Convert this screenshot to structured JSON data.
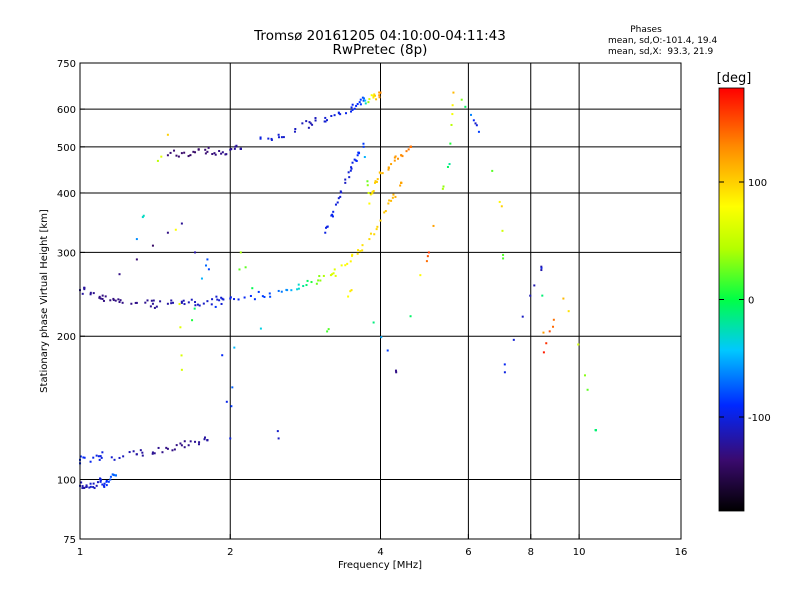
{
  "chart_data": {
    "type": "scatter",
    "title_line1": "Tromsø 20161205 04:10:00-04:11:43",
    "title_line2": "RwPretec (8p)",
    "xlabel": "Frequency [MHz]",
    "ylabel": "Stationary phase Virtual Height [km]",
    "x_scale": "log",
    "y_scale": "log",
    "xlim": [
      1,
      16
    ],
    "ylim": [
      75,
      750
    ],
    "x_ticks": [
      1,
      2,
      4,
      6,
      8,
      10,
      16
    ],
    "x_tick_labels": [
      "1",
      "2",
      "4",
      "6",
      "8",
      "10",
      "16"
    ],
    "x_grid": [
      2,
      4,
      6,
      8,
      10
    ],
    "y_ticks": [
      75,
      100,
      200,
      300,
      400,
      500,
      600,
      750
    ],
    "y_tick_labels": [
      "75",
      "100",
      "200",
      "300",
      "400",
      "500",
      "600",
      "750"
    ],
    "y_grid": [
      100,
      200,
      300,
      400,
      500,
      600
    ],
    "grid": true,
    "stats": {
      "heading": "Phases",
      "line_o": "mean, sd,O:-101.4, 19.4",
      "line_x": "mean, sd,X:  93.3, 21.9"
    },
    "colorbar": {
      "label": "[deg]",
      "range": [
        -180,
        180
      ],
      "ticks": [
        100,
        0,
        -100
      ],
      "tick_labels": [
        "100",
        "0",
        "-100"
      ]
    },
    "traces": [
      {
        "x": [
          1.0,
          1.02,
          1.05,
          1.08,
          1.1,
          1.12,
          1.15,
          1.18
        ],
        "y": [
          97,
          96,
          98,
          97,
          99,
          98,
          100,
          102
        ],
        "phase": [
          -110,
          -120,
          -105,
          -115,
          -100,
          -95,
          -80,
          -70
        ]
      },
      {
        "x": [
          1.0,
          1.05,
          1.1,
          1.2,
          1.3,
          1.4,
          1.5,
          1.6,
          1.7,
          1.8
        ],
        "y": [
          110,
          109,
          112,
          111,
          113,
          114,
          116,
          118,
          120,
          121
        ],
        "phase": [
          -90,
          -95,
          -100,
          -110,
          -120,
          -125,
          -130,
          -130,
          -125,
          -120
        ]
      },
      {
        "x": [
          1.0,
          1.05,
          1.1,
          1.15,
          1.2,
          1.3,
          1.4,
          1.5,
          1.6,
          1.7,
          1.8,
          1.9,
          2.0,
          2.2,
          2.4,
          2.6,
          2.8,
          3.0,
          3.2,
          3.4,
          3.6,
          3.8,
          4.0,
          4.2,
          4.4
        ],
        "y": [
          250,
          245,
          240,
          238,
          236,
          235,
          234,
          234,
          235,
          236,
          237,
          238,
          240,
          243,
          246,
          250,
          255,
          262,
          270,
          282,
          298,
          320,
          350,
          385,
          420
        ],
        "phase": [
          -120,
          -125,
          -130,
          -132,
          -130,
          -128,
          -125,
          -120,
          -115,
          -110,
          -108,
          -105,
          -100,
          -90,
          -80,
          -60,
          -20,
          30,
          60,
          80,
          90,
          95,
          100,
          110,
          120
        ]
      },
      {
        "x": [
          1.2,
          1.3,
          1.4,
          1.5,
          1.6,
          1.7
        ],
        "y": [
          270,
          290,
          310,
          330,
          345,
          300
        ],
        "phase": [
          -130,
          -135,
          -140,
          -130,
          -125,
          -120
        ]
      },
      {
        "x": [
          1.5,
          1.6,
          1.7,
          1.8,
          1.9,
          2.0,
          2.1
        ],
        "y": [
          480,
          485,
          487,
          488,
          490,
          493,
          495
        ],
        "phase": [
          -135,
          -138,
          -140,
          -135,
          -130,
          -125,
          -120
        ]
      },
      {
        "x": [
          2.3,
          2.5,
          2.7,
          2.9,
          3.1,
          3.3,
          3.5,
          3.6,
          3.7,
          3.8,
          3.9,
          4.0
        ],
        "y": [
          520,
          530,
          545,
          560,
          575,
          590,
          605,
          615,
          625,
          630,
          640,
          650
        ],
        "phase": [
          -100,
          -105,
          -110,
          -115,
          -105,
          -100,
          -95,
          -90,
          -80,
          60,
          100,
          130
        ]
      },
      {
        "x": [
          3.1,
          3.2,
          3.3,
          3.4,
          3.5,
          3.6,
          3.7,
          3.8,
          3.9,
          4.0,
          4.2,
          4.4,
          4.6
        ],
        "y": [
          330,
          360,
          390,
          420,
          450,
          480,
          500,
          380,
          420,
          440,
          460,
          480,
          500
        ],
        "phase": [
          -100,
          -95,
          -105,
          -110,
          -100,
          -90,
          -85,
          80,
          100,
          110,
          120,
          130,
          140
        ]
      },
      {
        "x": [
          1.3,
          1.5,
          1.6,
          1.8,
          2.0,
          2.1,
          2.5,
          3.5,
          4.3,
          5.0,
          5.5,
          5.6,
          6.2,
          7.0,
          7.1,
          8.4,
          8.5,
          9.3,
          10.8
        ],
        "y": [
          320,
          530,
          170,
          290,
          122,
          300,
          122,
          250,
          168,
          300,
          460,
          650,
          560,
          375,
          168,
          280,
          185,
          240,
          127
        ],
        "phase": [
          -60,
          100,
          60,
          -80,
          -100,
          40,
          -110,
          90,
          -130,
          160,
          -20,
          110,
          -110,
          100,
          -100,
          -120,
          170,
          110,
          -10
        ]
      }
    ]
  }
}
